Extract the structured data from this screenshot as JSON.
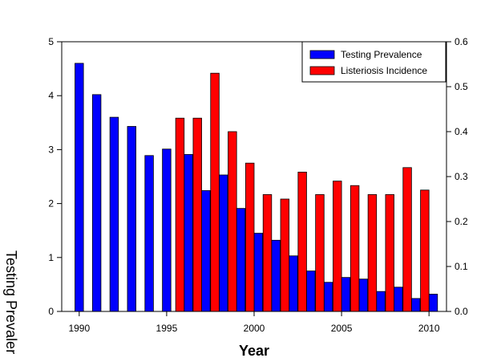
{
  "chart_data": {
    "type": "bar",
    "title": "",
    "xlabel": "Year",
    "ylabel": "Testing Prevaler",
    "y2label": "",
    "xlim": [
      1989,
      2011
    ],
    "ylim": [
      0,
      5
    ],
    "y2lim": [
      0,
      0.6
    ],
    "x_ticks": [
      1990,
      1995,
      2000,
      2005,
      2010
    ],
    "y_ticks": [
      "0",
      "1",
      "2",
      "3",
      "4",
      "5"
    ],
    "y2_ticks": [
      "0.0",
      "0.1",
      "0.2",
      "0.3",
      "0.4",
      "0.5",
      "0.6"
    ],
    "grid": false,
    "legend_position": "top-right",
    "colors": {
      "testing": "#0000ff",
      "listeriosis": "#ff0000",
      "edge": "#000000"
    },
    "series": [
      {
        "name": "Testing Prevalence",
        "axis": "left",
        "x": [
          1990,
          1991,
          1992,
          1993,
          1994,
          1995,
          1996,
          1997,
          1998,
          1999,
          2000,
          2001,
          2002,
          2003,
          2004,
          2005,
          2006,
          2007,
          2008,
          2009,
          2010
        ],
        "values": [
          4.6,
          4.02,
          3.6,
          3.43,
          2.89,
          3.01,
          2.91,
          2.24,
          2.53,
          1.91,
          1.45,
          1.32,
          1.03,
          0.75,
          0.54,
          0.63,
          0.6,
          0.37,
          0.45,
          0.24,
          0.32
        ]
      },
      {
        "name": "Listeriosis Incidence",
        "axis": "right",
        "x": [
          1996,
          1997,
          1998,
          1999,
          2000,
          2001,
          2002,
          2003,
          2004,
          2005,
          2006,
          2007,
          2008,
          2009,
          2010
        ],
        "values": [
          0.43,
          0.43,
          0.53,
          0.4,
          0.33,
          0.26,
          0.25,
          0.31,
          0.26,
          0.29,
          0.28,
          0.26,
          0.26,
          0.32,
          0.27
        ]
      }
    ]
  }
}
